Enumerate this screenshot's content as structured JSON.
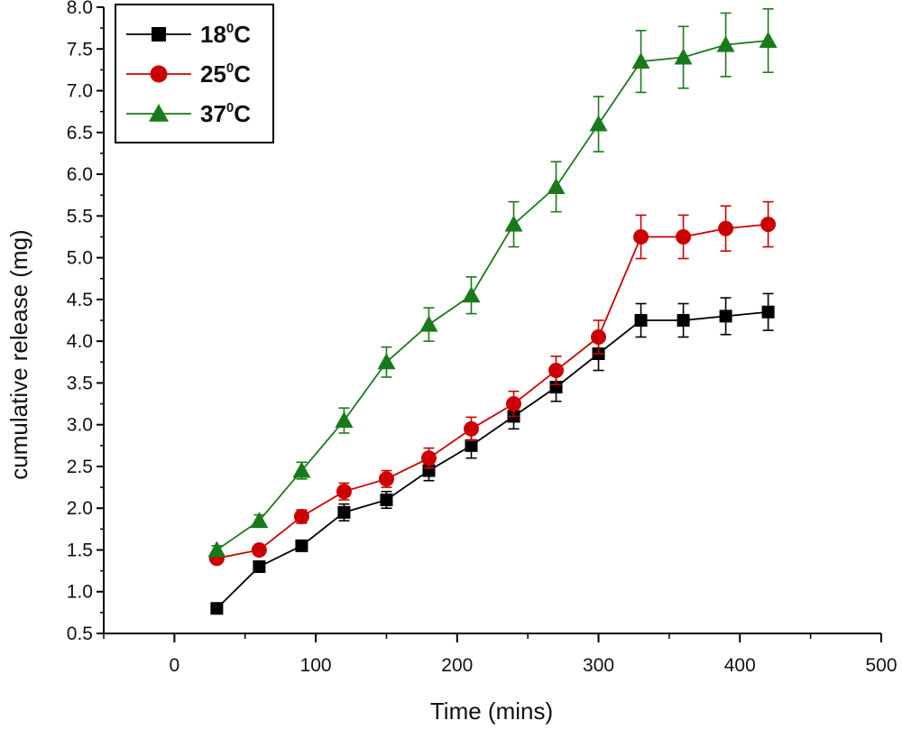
{
  "chart_data": {
    "type": "line",
    "title": "",
    "xlabel": "Time (mins)",
    "ylabel": "cumulative release (mg)",
    "xlim": [
      -50,
      500
    ],
    "ylim": [
      0.5,
      8.0
    ],
    "x_ticks": [
      "0",
      "100",
      "200",
      "300",
      "400",
      "500"
    ],
    "y_ticks": [
      "0.5",
      "1.0",
      "1.5",
      "2.0",
      "2.5",
      "3.0",
      "3.5",
      "4.0",
      "4.5",
      "5.0",
      "5.5",
      "6.0",
      "6.5",
      "7.0",
      "7.5",
      "8.0"
    ],
    "grid": false,
    "legend_position": "top-left",
    "x": [
      30,
      60,
      90,
      120,
      150,
      180,
      210,
      240,
      270,
      300,
      330,
      360,
      390,
      420
    ],
    "series": [
      {
        "name": "18°C",
        "legend_base": "18",
        "legend_sup": "0",
        "legend_unit": "C",
        "color": "#000000",
        "marker": "square",
        "values": [
          0.8,
          1.3,
          1.55,
          1.95,
          2.1,
          2.45,
          2.75,
          3.1,
          3.45,
          3.85,
          4.25,
          4.25,
          4.3,
          4.35
        ],
        "errors": [
          0.0,
          0.0,
          0.05,
          0.1,
          0.1,
          0.12,
          0.15,
          0.15,
          0.17,
          0.2,
          0.2,
          0.2,
          0.22,
          0.22
        ]
      },
      {
        "name": "25°C",
        "legend_base": "25",
        "legend_sup": "0",
        "legend_unit": "C",
        "color": "#cc0000",
        "marker": "circle",
        "values": [
          1.4,
          1.5,
          1.9,
          2.2,
          2.35,
          2.6,
          2.95,
          3.25,
          3.65,
          4.05,
          5.25,
          5.25,
          5.35,
          5.4
        ],
        "errors": [
          0.03,
          0.05,
          0.08,
          0.1,
          0.1,
          0.12,
          0.14,
          0.15,
          0.17,
          0.2,
          0.26,
          0.26,
          0.27,
          0.27
        ]
      },
      {
        "name": "37°C",
        "legend_base": "37",
        "legend_sup": "0",
        "legend_unit": "C",
        "color": "#1a7a1a",
        "marker": "triangle",
        "values": [
          1.5,
          1.85,
          2.45,
          3.05,
          3.75,
          4.2,
          4.55,
          5.4,
          5.85,
          6.6,
          7.35,
          7.4,
          7.55,
          7.6
        ],
        "errors": [
          0.05,
          0.07,
          0.1,
          0.15,
          0.18,
          0.2,
          0.22,
          0.27,
          0.3,
          0.33,
          0.37,
          0.37,
          0.38,
          0.38
        ]
      }
    ]
  }
}
